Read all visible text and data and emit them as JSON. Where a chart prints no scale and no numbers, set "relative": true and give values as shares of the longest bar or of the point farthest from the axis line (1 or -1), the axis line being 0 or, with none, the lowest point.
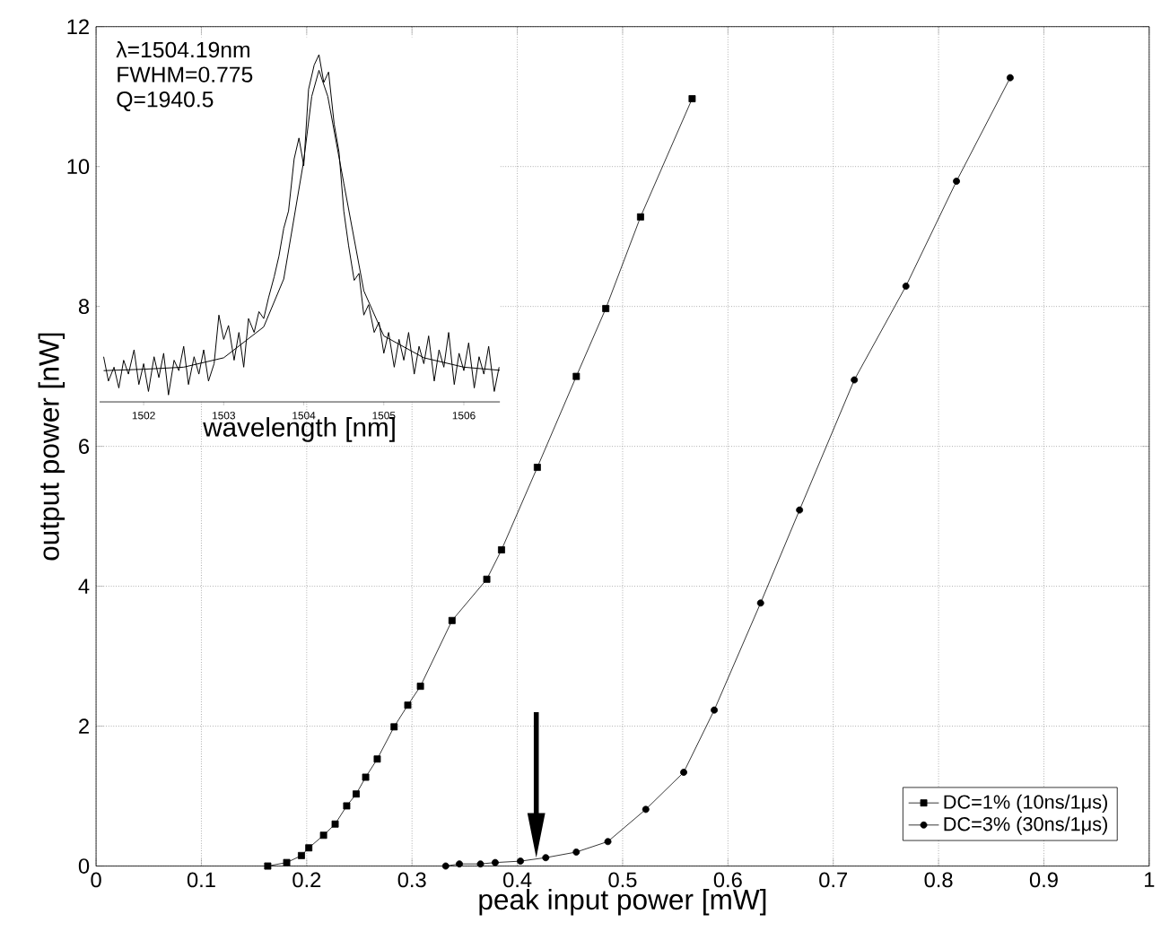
{
  "chart_data": [
    {
      "type": "line",
      "xlabel": "peak input power [mW]",
      "ylabel": "output power [nW]",
      "xlim": [
        0,
        1
      ],
      "ylim": [
        0,
        12
      ],
      "xticks": [
        0,
        0.1,
        0.2,
        0.3,
        0.4,
        0.5,
        0.6,
        0.7,
        0.8,
        0.9,
        1
      ],
      "yticks": [
        0,
        2,
        4,
        6,
        8,
        10,
        12
      ],
      "grid": true,
      "legend": "bottom right",
      "line_style": "solid",
      "series": [
        {
          "name": "DC=1% (10ns/1μs)",
          "color": "#000000",
          "marker": "square",
          "x": [
            0.163,
            0.181,
            0.195,
            0.202,
            0.216,
            0.227,
            0.238,
            0.247,
            0.256,
            0.267,
            0.283,
            0.296,
            0.308,
            0.338,
            0.371,
            0.385,
            0.419,
            0.456,
            0.484,
            0.517,
            0.566
          ],
          "values": [
            0.0,
            0.05,
            0.15,
            0.26,
            0.44,
            0.6,
            0.86,
            1.03,
            1.27,
            1.53,
            1.99,
            2.3,
            2.57,
            3.51,
            4.1,
            4.52,
            5.7,
            7.0,
            7.97,
            9.28,
            10.97
          ]
        },
        {
          "name": "DC=3% (30ns/1μs)",
          "color": "#000000",
          "marker": "circle",
          "x": [
            0.332,
            0.345,
            0.365,
            0.379,
            0.403,
            0.427,
            0.456,
            0.486,
            0.522,
            0.558,
            0.587,
            0.631,
            0.668,
            0.72,
            0.769,
            0.817,
            0.868
          ],
          "values": [
            0.0,
            0.03,
            0.03,
            0.05,
            0.07,
            0.12,
            0.2,
            0.35,
            0.81,
            1.34,
            2.23,
            3.76,
            5.09,
            6.95,
            8.29,
            9.79,
            11.27
          ]
        }
      ]
    },
    {
      "type": "line",
      "relative": true,
      "xlabel": "wavelength [nm]",
      "xlim": [
        1501.45,
        1506.45
      ],
      "xticks": [
        1502,
        1503,
        1504,
        1505,
        1506
      ],
      "tick_labels": "x",
      "grid": false,
      "legend": false,
      "annotations": [
        "λ=1504.19nm",
        "FWHM=0.775",
        "Q=1940.5"
      ],
      "series": [
        {
          "color": "#000000",
          "x": [
            1501.5,
            1501.56,
            1501.63,
            1501.69,
            1501.75,
            1501.81,
            1501.88,
            1501.94,
            1502.0,
            1502.06,
            1502.13,
            1502.19,
            1502.25,
            1502.31,
            1502.38,
            1502.44,
            1502.5,
            1502.56,
            1502.63,
            1502.69,
            1502.75,
            1502.81,
            1502.88,
            1502.94,
            1503.0,
            1503.06,
            1503.13,
            1503.19,
            1503.25,
            1503.31,
            1503.38,
            1503.44,
            1503.5,
            1503.56,
            1503.63,
            1503.69,
            1503.75,
            1503.81,
            1503.88,
            1503.94,
            1504.0,
            1504.06,
            1504.13,
            1504.19,
            1504.25,
            1504.31,
            1504.38,
            1504.44,
            1504.5,
            1504.56,
            1504.63,
            1504.69,
            1504.75,
            1504.81,
            1504.88,
            1504.94,
            1505.0,
            1505.06,
            1505.13,
            1505.19,
            1505.25,
            1505.31,
            1505.38,
            1505.44,
            1505.5,
            1505.56,
            1505.63,
            1505.69,
            1505.75,
            1505.81,
            1505.88,
            1505.94,
            1506.0,
            1506.06,
            1506.13,
            1506.19,
            1506.25,
            1506.31,
            1506.38,
            1506.44
          ],
          "values": [
            0.13,
            0.06,
            0.1,
            0.04,
            0.12,
            0.08,
            0.15,
            0.05,
            0.11,
            0.03,
            0.13,
            0.07,
            0.14,
            0.02,
            0.12,
            0.09,
            0.16,
            0.05,
            0.13,
            0.08,
            0.15,
            0.06,
            0.11,
            0.25,
            0.18,
            0.22,
            0.12,
            0.2,
            0.1,
            0.24,
            0.2,
            0.26,
            0.24,
            0.3,
            0.36,
            0.42,
            0.5,
            0.55,
            0.7,
            0.76,
            0.68,
            0.9,
            0.97,
            1.0,
            0.92,
            0.95,
            0.8,
            0.72,
            0.55,
            0.45,
            0.35,
            0.37,
            0.25,
            0.28,
            0.2,
            0.23,
            0.14,
            0.2,
            0.1,
            0.18,
            0.12,
            0.2,
            0.08,
            0.16,
            0.11,
            0.19,
            0.06,
            0.15,
            0.1,
            0.2,
            0.05,
            0.14,
            0.09,
            0.17,
            0.04,
            0.13,
            0.08,
            0.16,
            0.03,
            0.1
          ]
        },
        {
          "color": "#000000",
          "x": [
            1501.5,
            1502.0,
            1502.5,
            1503.0,
            1503.5,
            1503.75,
            1504.0,
            1504.1,
            1504.19,
            1504.3,
            1504.5,
            1504.75,
            1505.0,
            1505.5,
            1506.0,
            1506.45
          ],
          "values": [
            0.09,
            0.094,
            0.1,
            0.127,
            0.216,
            0.354,
            0.695,
            0.88,
            0.955,
            0.88,
            0.63,
            0.32,
            0.19,
            0.127,
            0.1,
            0.091
          ]
        }
      ]
    }
  ]
}
